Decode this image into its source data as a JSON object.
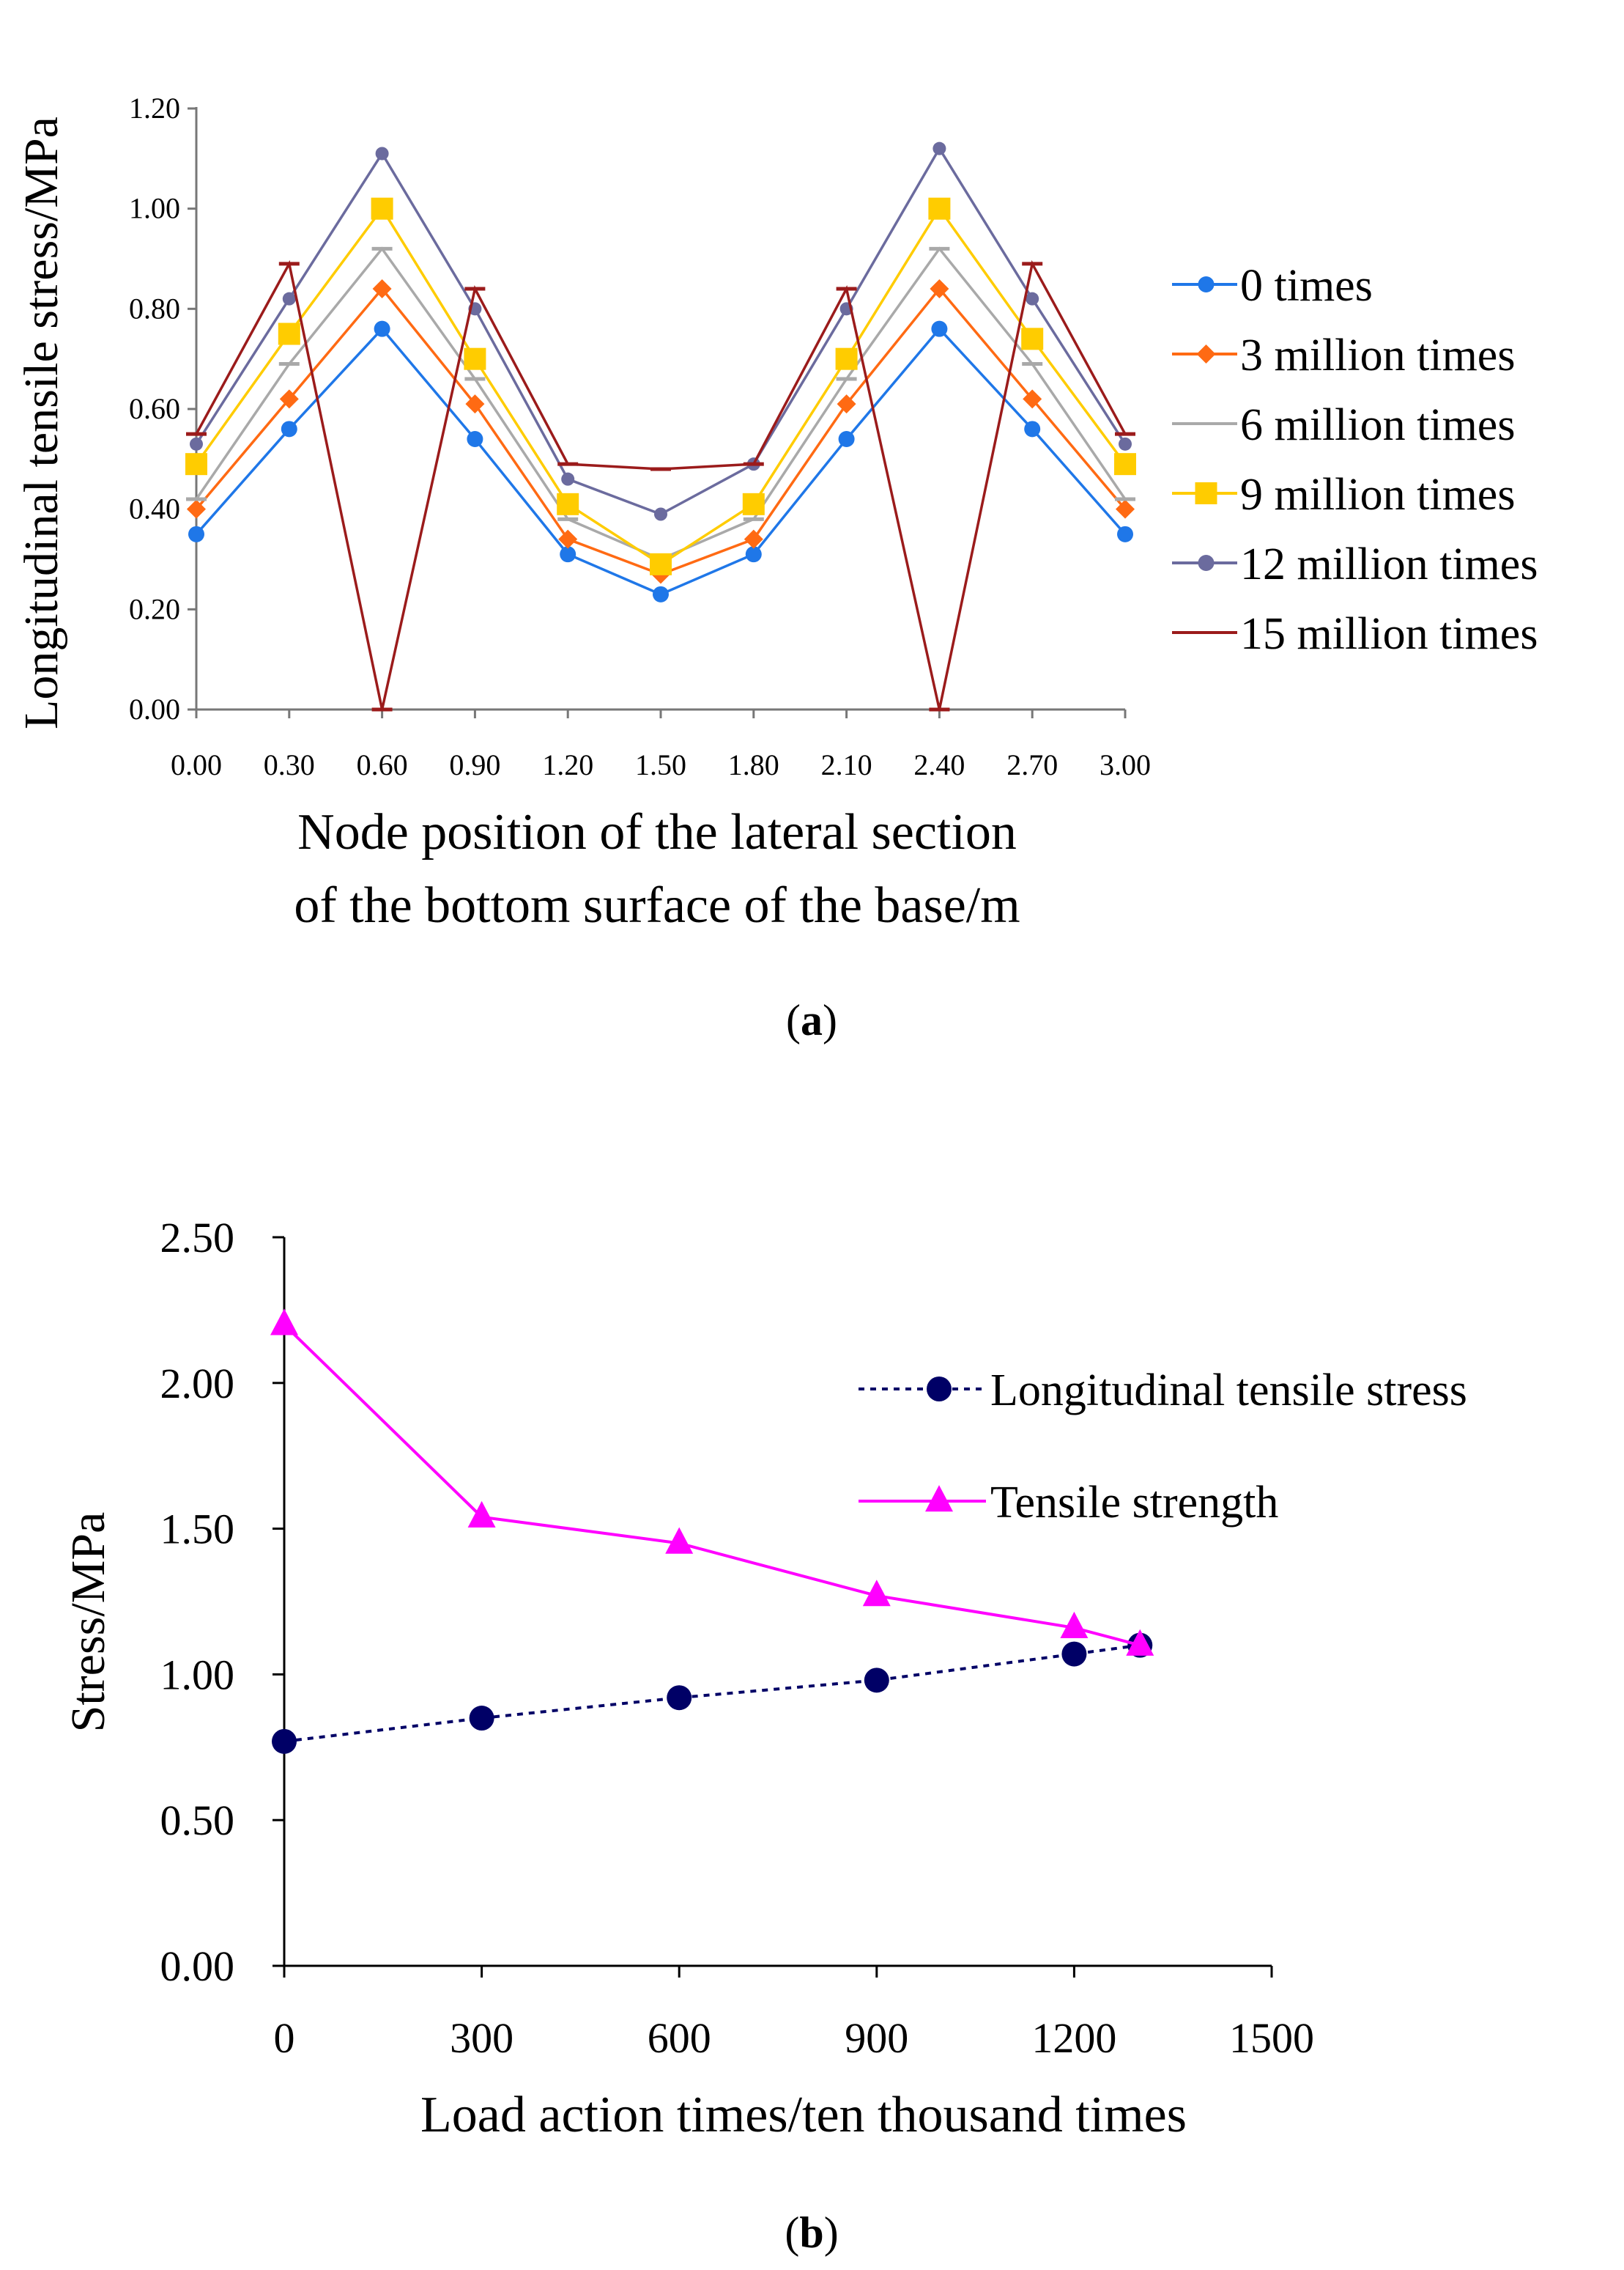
{
  "chart_data": [
    {
      "type": "line",
      "panel_label": "(a)",
      "panel_label_letter": "a",
      "title": "",
      "xlabel_line1": "Node position of the lateral section",
      "xlabel_line2": "of the bottom surface of the base/m",
      "ylabel": "Longitudinal tensile stress/MPa",
      "categories": [
        "0.00",
        "0.30",
        "0.60",
        "0.90",
        "1.20",
        "1.50",
        "1.80",
        "2.10",
        "2.40",
        "2.70",
        "3.00"
      ],
      "y_ticks": [
        "0.00",
        "0.20",
        "0.40",
        "0.60",
        "0.80",
        "1.00",
        "1.20"
      ],
      "ylim": [
        0,
        1.2
      ],
      "grid": false,
      "legend_position": "right",
      "series": [
        {
          "name": "0 times",
          "color": "#1f77e8",
          "marker": "circle",
          "values": [
            0.35,
            0.56,
            0.76,
            0.54,
            0.31,
            0.23,
            0.31,
            0.54,
            0.76,
            0.56,
            0.35
          ]
        },
        {
          "name": "3 million times",
          "color": "#ff6a13",
          "marker": "diamond",
          "values": [
            0.4,
            0.62,
            0.84,
            0.61,
            0.34,
            0.27,
            0.34,
            0.61,
            0.84,
            0.62,
            0.4
          ]
        },
        {
          "name": "6 million times",
          "color": "#a9a9a9",
          "marker": "dash",
          "values": [
            0.42,
            0.69,
            0.92,
            0.66,
            0.38,
            0.3,
            0.38,
            0.66,
            0.92,
            0.69,
            0.42
          ]
        },
        {
          "name": "9 million times",
          "color": "#ffcc00",
          "marker": "square",
          "values": [
            0.49,
            0.75,
            1.0,
            0.7,
            0.41,
            0.29,
            0.41,
            0.7,
            1.0,
            0.74,
            0.49
          ]
        },
        {
          "name": "12 million times",
          "color": "#6b6b9e",
          "marker": "circle",
          "values": [
            0.53,
            0.82,
            1.11,
            0.8,
            0.46,
            0.39,
            0.49,
            0.8,
            1.12,
            0.82,
            0.53
          ]
        },
        {
          "name": "15 million times",
          "color": "#9b1b1b",
          "marker": "dash",
          "values": [
            0.55,
            0.89,
            0.0,
            0.84,
            0.49,
            0.48,
            0.49,
            0.84,
            0.0,
            0.89,
            0.55
          ]
        }
      ]
    },
    {
      "type": "line",
      "panel_label": "(b)",
      "panel_label_letter": "b",
      "title": "",
      "xlabel": "Load action times/ten thousand times",
      "ylabel": "Stress/MPa",
      "x_ticks": [
        "0",
        "300",
        "600",
        "900",
        "1200",
        "1500"
      ],
      "y_ticks": [
        "0.00",
        "0.50",
        "1.00",
        "1.50",
        "2.00",
        "2.50"
      ],
      "xlim": [
        0,
        1500
      ],
      "ylim": [
        0,
        2.5
      ],
      "grid": false,
      "legend_position": "right",
      "series": [
        {
          "name": "Longitudinal tensile stress",
          "color": "#000066",
          "marker": "circle",
          "dashed": true,
          "x": [
            0,
            300,
            600,
            900,
            1200,
            1300
          ],
          "values": [
            0.77,
            0.85,
            0.92,
            0.98,
            1.07,
            1.1
          ]
        },
        {
          "name": "Tensile strength",
          "color": "#ff00ff",
          "marker": "triangle",
          "dashed": false,
          "x": [
            0,
            300,
            600,
            900,
            1200,
            1300
          ],
          "values": [
            2.2,
            1.54,
            1.45,
            1.27,
            1.16,
            1.1
          ]
        }
      ]
    }
  ]
}
